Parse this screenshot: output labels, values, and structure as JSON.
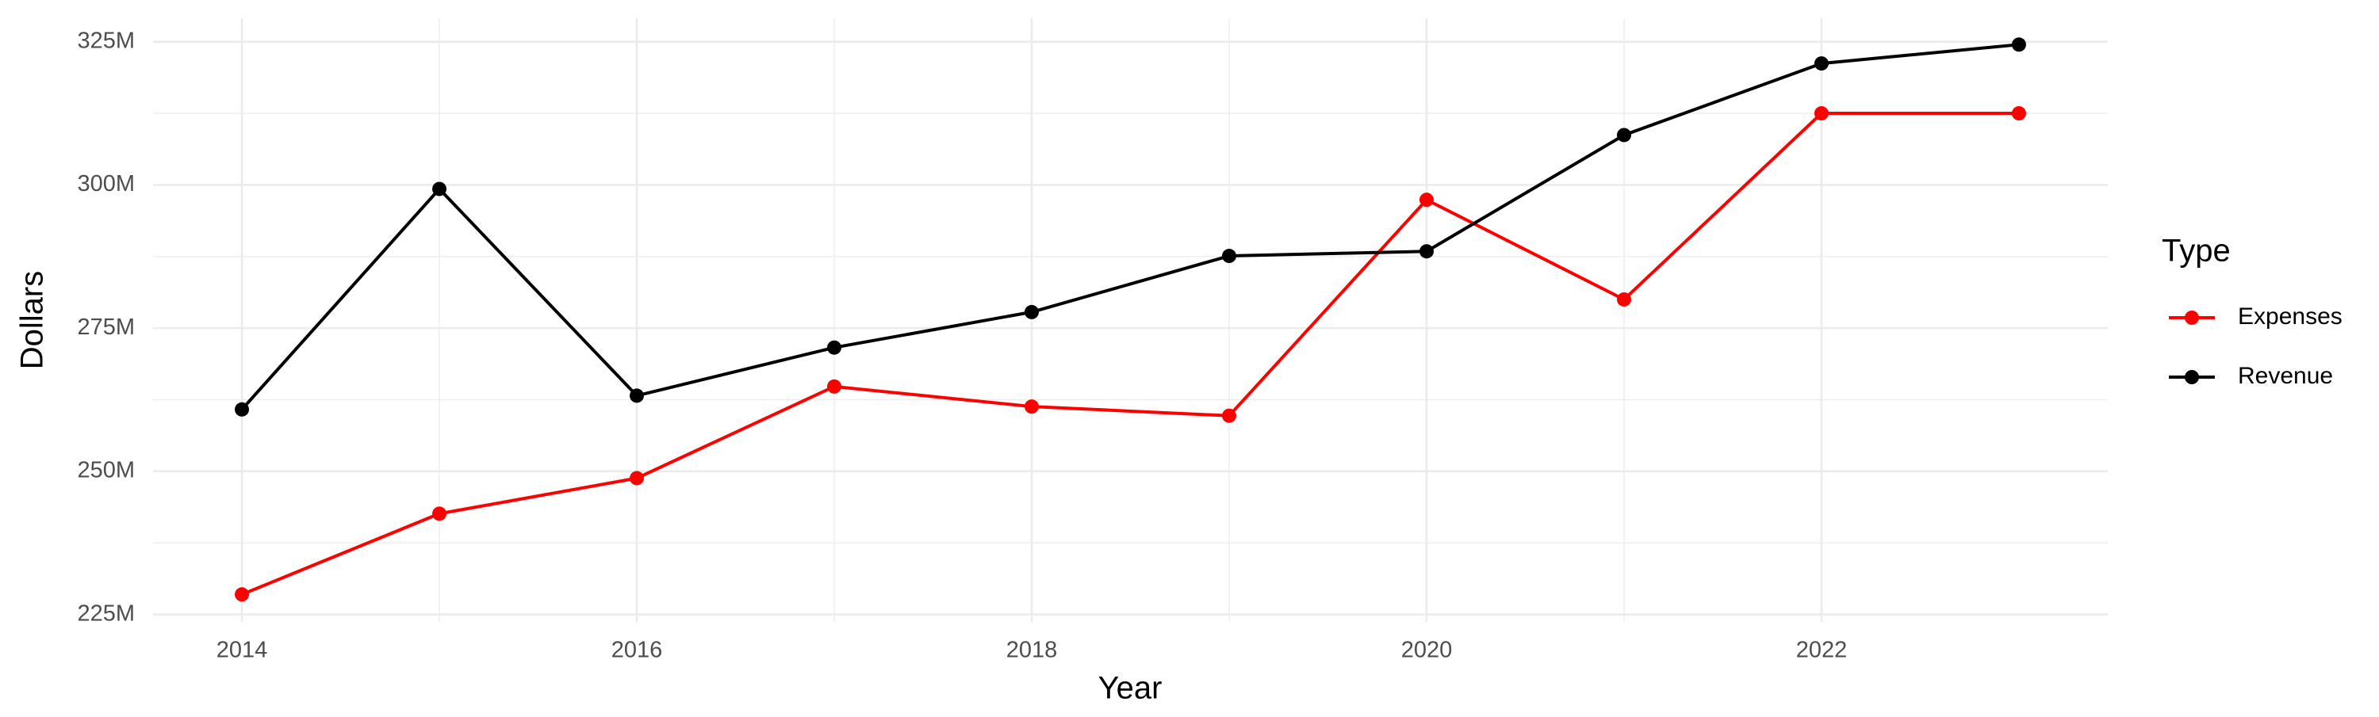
{
  "chart_data": {
    "type": "line",
    "x_label": "Year",
    "y_label": "Dollars",
    "legend_title": "Type",
    "legend_position": "right",
    "grid": true,
    "x": [
      2014,
      2015,
      2016,
      2017,
      2018,
      2019,
      2020,
      2021,
      2022,
      2023
    ],
    "series": [
      {
        "name": "Expenses",
        "color": "#ff0000",
        "values": [
          228500000,
          242600000,
          248800000,
          264800000,
          261300000,
          259700000,
          297400000,
          280000000,
          312500000,
          312500000
        ]
      },
      {
        "name": "Revenue",
        "color": "#000000",
        "values": [
          260800000,
          299300000,
          263200000,
          271600000,
          277800000,
          287600000,
          288400000,
          308700000,
          321200000,
          324500000
        ]
      }
    ],
    "xlim": [
      2013.55,
      2023.45
    ],
    "xticks": [
      2014,
      2016,
      2018,
      2020,
      2022
    ],
    "ylim": [
      223700000,
      329100000
    ],
    "yticks": [
      {
        "value": 225000000,
        "label": "225M"
      },
      {
        "value": 250000000,
        "label": "250M"
      },
      {
        "value": 275000000,
        "label": "275M"
      },
      {
        "value": 300000000,
        "label": "300M"
      },
      {
        "value": 325000000,
        "label": "325M"
      }
    ]
  }
}
